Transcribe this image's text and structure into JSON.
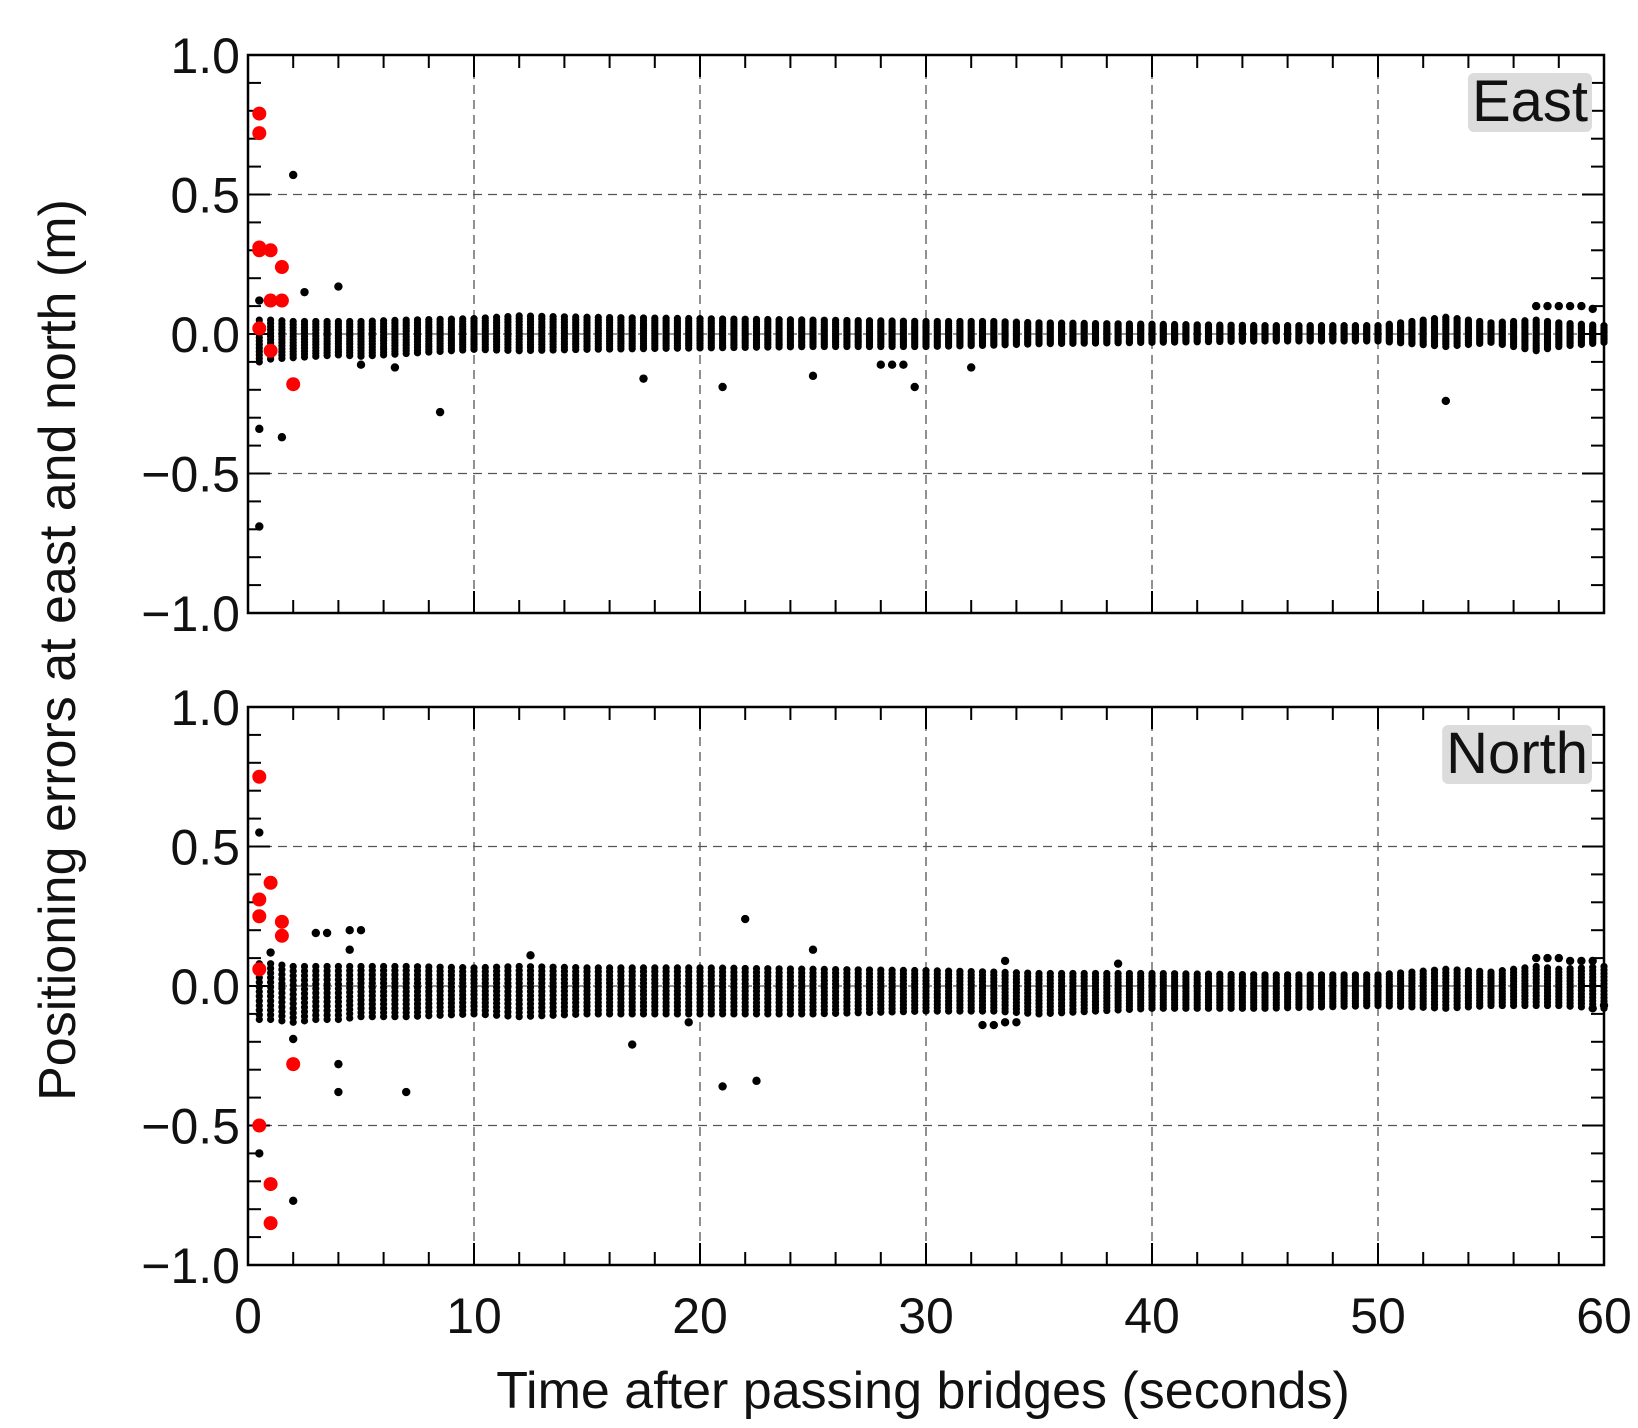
{
  "chart_data": {
    "type": "scatter",
    "xlabel": "Time after passing bridges (seconds)",
    "ylabel": "Positioning errors at east and north (m)",
    "xlim": [
      0,
      60
    ],
    "ylim": [
      -1.0,
      1.0
    ],
    "x_ticks": [
      "0",
      "10",
      "20",
      "30",
      "40",
      "50",
      "60"
    ],
    "y_ticks": [
      "1.0",
      "0.5",
      "0.0",
      "−0.5",
      "−1.0"
    ],
    "grid": "dashed at major ticks",
    "colors": {
      "red_points": "#ff0000",
      "black_points": "#000000",
      "tag_background": "#dcdcdc"
    },
    "panels": [
      {
        "tag": "East",
        "band_lower": [
          [
            0.5,
            -0.1
          ],
          [
            1.0,
            -0.09
          ],
          [
            2,
            -0.085
          ],
          [
            3,
            -0.08
          ],
          [
            4,
            -0.075
          ],
          [
            5,
            -0.08
          ],
          [
            7,
            -0.07
          ],
          [
            10,
            -0.055
          ],
          [
            12,
            -0.06
          ],
          [
            15,
            -0.055
          ],
          [
            20,
            -0.05
          ],
          [
            25,
            -0.045
          ],
          [
            30,
            -0.045
          ],
          [
            33,
            -0.04
          ],
          [
            35,
            -0.035
          ],
          [
            40,
            -0.03
          ],
          [
            45,
            -0.025
          ],
          [
            50,
            -0.025
          ],
          [
            53,
            -0.045
          ],
          [
            55,
            -0.03
          ],
          [
            57,
            -0.06
          ],
          [
            58,
            -0.045
          ],
          [
            60,
            -0.03
          ]
        ],
        "band_upper": [
          [
            0.5,
            0.05
          ],
          [
            1.0,
            0.05
          ],
          [
            2,
            0.045
          ],
          [
            3,
            0.045
          ],
          [
            4,
            0.045
          ],
          [
            5,
            0.045
          ],
          [
            7,
            0.05
          ],
          [
            10,
            0.055
          ],
          [
            12,
            0.065
          ],
          [
            15,
            0.06
          ],
          [
            20,
            0.055
          ],
          [
            25,
            0.05
          ],
          [
            30,
            0.045
          ],
          [
            33,
            0.045
          ],
          [
            35,
            0.04
          ],
          [
            40,
            0.035
          ],
          [
            45,
            0.03
          ],
          [
            50,
            0.03
          ],
          [
            53,
            0.06
          ],
          [
            55,
            0.04
          ],
          [
            57,
            0.05
          ],
          [
            58,
            0.04
          ],
          [
            60,
            0.03
          ]
        ],
        "black_outliers": [
          [
            0.5,
            -0.69
          ],
          [
            0.5,
            -0.34
          ],
          [
            0.5,
            0.12
          ],
          [
            2.0,
            0.57
          ],
          [
            1.5,
            -0.37
          ],
          [
            2.5,
            0.15
          ],
          [
            4.0,
            0.17
          ],
          [
            5.0,
            -0.11
          ],
          [
            6.5,
            -0.12
          ],
          [
            8.5,
            -0.28
          ],
          [
            17.5,
            -0.16
          ],
          [
            21.0,
            -0.19
          ],
          [
            25.0,
            -0.15
          ],
          [
            28.0,
            -0.11
          ],
          [
            28.5,
            -0.11
          ],
          [
            29.0,
            -0.11
          ],
          [
            29.5,
            -0.19
          ],
          [
            32.0,
            -0.12
          ],
          [
            53.0,
            -0.24
          ],
          [
            57.0,
            0.1
          ],
          [
            57.5,
            0.1
          ],
          [
            58.0,
            0.1
          ],
          [
            58.5,
            0.1
          ],
          [
            59.0,
            0.1
          ],
          [
            59.5,
            0.09
          ]
        ],
        "red_points": [
          [
            0.5,
            0.79
          ],
          [
            0.5,
            0.72
          ],
          [
            0.5,
            0.31
          ],
          [
            0.5,
            0.3
          ],
          [
            1.0,
            0.3
          ],
          [
            1.5,
            0.24
          ],
          [
            1.0,
            0.12
          ],
          [
            1.5,
            0.12
          ],
          [
            0.5,
            0.02
          ],
          [
            1.0,
            -0.06
          ],
          [
            2.0,
            -0.18
          ]
        ]
      },
      {
        "tag": "North",
        "band_lower": [
          [
            0.5,
            -0.12
          ],
          [
            1.0,
            -0.12
          ],
          [
            2,
            -0.13
          ],
          [
            3,
            -0.12
          ],
          [
            4,
            -0.12
          ],
          [
            5,
            -0.11
          ],
          [
            7,
            -0.11
          ],
          [
            10,
            -0.1
          ],
          [
            12,
            -0.11
          ],
          [
            15,
            -0.1
          ],
          [
            20,
            -0.1
          ],
          [
            25,
            -0.1
          ],
          [
            30,
            -0.09
          ],
          [
            33,
            -0.09
          ],
          [
            35,
            -0.1
          ],
          [
            40,
            -0.08
          ],
          [
            45,
            -0.08
          ],
          [
            50,
            -0.07
          ],
          [
            53,
            -0.08
          ],
          [
            55,
            -0.07
          ],
          [
            57,
            -0.07
          ],
          [
            58,
            -0.07
          ],
          [
            60,
            -0.08
          ]
        ],
        "band_upper": [
          [
            0.5,
            0.08
          ],
          [
            1.0,
            0.08
          ],
          [
            2,
            0.07
          ],
          [
            3,
            0.07
          ],
          [
            4,
            0.07
          ],
          [
            5,
            0.07
          ],
          [
            7,
            0.07
          ],
          [
            10,
            0.065
          ],
          [
            12,
            0.07
          ],
          [
            15,
            0.065
          ],
          [
            20,
            0.065
          ],
          [
            25,
            0.06
          ],
          [
            30,
            0.055
          ],
          [
            33,
            0.05
          ],
          [
            35,
            0.045
          ],
          [
            40,
            0.045
          ],
          [
            45,
            0.04
          ],
          [
            50,
            0.04
          ],
          [
            53,
            0.06
          ],
          [
            55,
            0.05
          ],
          [
            57,
            0.07
          ],
          [
            58,
            0.06
          ],
          [
            60,
            0.07
          ]
        ],
        "black_outliers": [
          [
            0.5,
            0.55
          ],
          [
            1.0,
            0.12
          ],
          [
            2.0,
            -0.19
          ],
          [
            2.0,
            -0.77
          ],
          [
            0.5,
            -0.6
          ],
          [
            3.0,
            0.19
          ],
          [
            3.5,
            0.19
          ],
          [
            4.0,
            -0.28
          ],
          [
            4.0,
            -0.38
          ],
          [
            4.5,
            0.13
          ],
          [
            4.5,
            0.2
          ],
          [
            5.0,
            0.2
          ],
          [
            7.0,
            -0.38
          ],
          [
            12.5,
            0.11
          ],
          [
            17.0,
            -0.21
          ],
          [
            19.5,
            -0.13
          ],
          [
            21.0,
            -0.36
          ],
          [
            22.0,
            0.24
          ],
          [
            22.5,
            -0.34
          ],
          [
            25.0,
            0.13
          ],
          [
            32.5,
            -0.14
          ],
          [
            33.0,
            -0.14
          ],
          [
            33.5,
            -0.13
          ],
          [
            34.0,
            -0.13
          ],
          [
            33.5,
            0.09
          ],
          [
            38.5,
            0.08
          ],
          [
            57.0,
            0.1
          ],
          [
            57.5,
            0.1
          ],
          [
            58.0,
            0.1
          ],
          [
            58.5,
            0.09
          ],
          [
            59.0,
            0.09
          ],
          [
            59.5,
            0.09
          ],
          [
            59.5,
            -0.08
          ],
          [
            60.0,
            -0.07
          ]
        ],
        "red_points": [
          [
            0.5,
            0.75
          ],
          [
            0.5,
            0.31
          ],
          [
            0.5,
            0.25
          ],
          [
            1.0,
            0.37
          ],
          [
            1.5,
            0.23
          ],
          [
            1.5,
            0.18
          ],
          [
            0.5,
            0.06
          ],
          [
            2.0,
            -0.28
          ],
          [
            0.5,
            -0.5
          ],
          [
            1.0,
            -0.71
          ],
          [
            1.0,
            -0.85
          ]
        ]
      }
    ]
  }
}
